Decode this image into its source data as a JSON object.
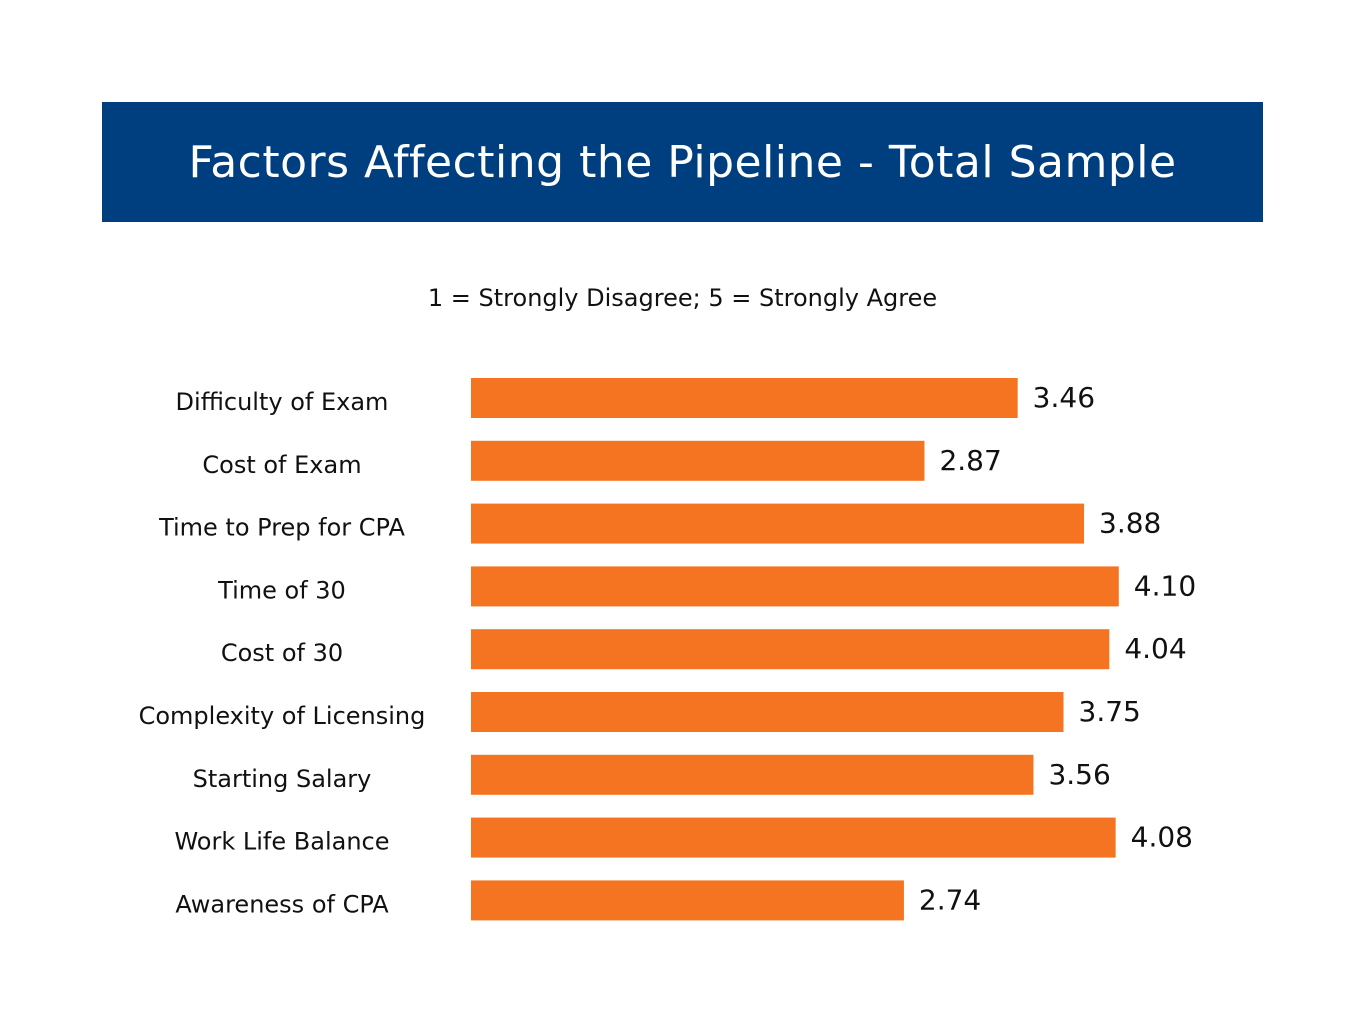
{
  "header": {
    "title": "Factors Affecting the Pipeline - Total Sample"
  },
  "colors": {
    "title_band": "#003f7f",
    "bar": "#f47421"
  },
  "chart_data": {
    "type": "bar",
    "orientation": "horizontal",
    "title": "Factors Affecting the Pipeline - Total Sample",
    "subtitle": "1 = Strongly Disagree; 5 = Strongly Agree",
    "categories": [
      "Difficulty of Exam",
      "Cost of Exam",
      "Time to Prep for CPA",
      "Time of 30",
      "Cost of 30",
      "Complexity of Licensing",
      "Starting Salary",
      "Work Life Balance",
      "Awareness of CPA"
    ],
    "values": [
      3.46,
      2.87,
      3.88,
      4.1,
      4.04,
      3.75,
      3.56,
      4.08,
      2.74
    ],
    "value_labels": [
      "3.46",
      "2.87",
      "3.88",
      "4.10",
      "4.04",
      "3.75",
      "3.56",
      "4.08",
      "2.74"
    ],
    "xlabel": "",
    "ylabel": "",
    "xlim": [
      0,
      4.1
    ],
    "grid": false,
    "legend": "none"
  }
}
